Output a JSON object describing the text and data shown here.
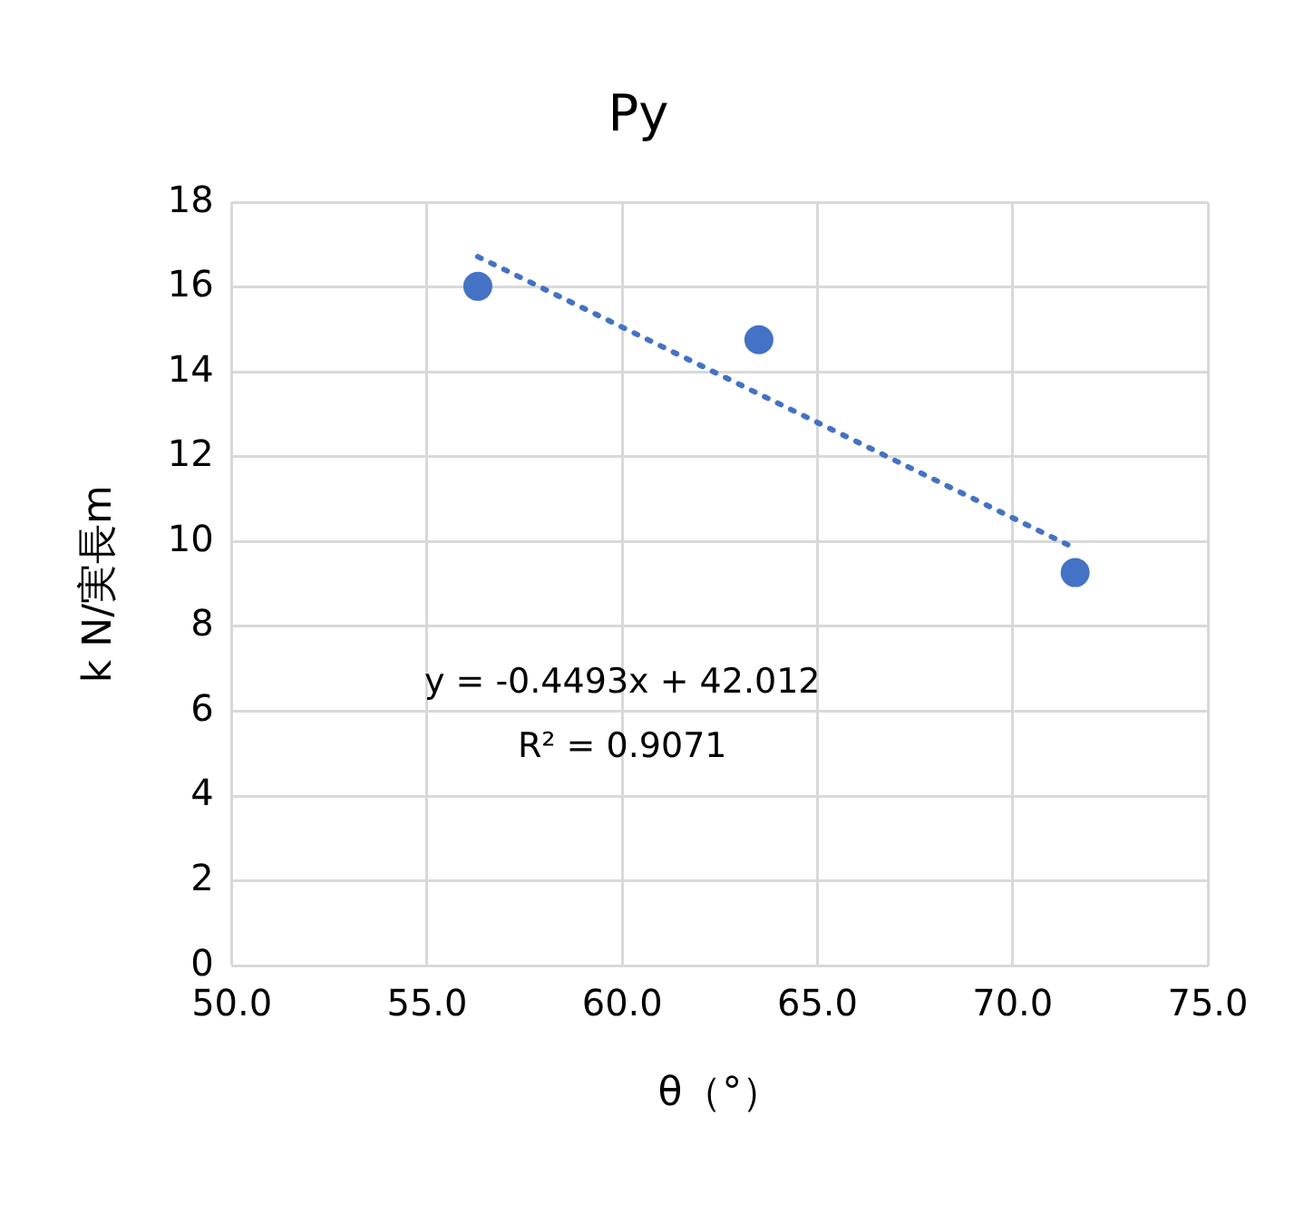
{
  "chart_data": {
    "type": "scatter",
    "title": "Py",
    "xlabel": "θ（°）",
    "ylabel": "k N/実長m",
    "series": [
      {
        "color": "#4472c4",
        "marker": "circle",
        "x": [
          56.3,
          63.5,
          71.6
        ],
        "values": [
          16.02,
          14.76,
          9.27
        ]
      },
      {
        "type": "line",
        "color": "#4472c4",
        "marker": "none",
        "line_style": "dotted",
        "x": [
          56.3,
          71.6
        ],
        "values": [
          16.72,
          9.84
        ]
      }
    ],
    "annotations": [
      "y = -0.4493x + 42.012",
      "R² = 0.9071"
    ],
    "xlim": [
      50,
      75
    ],
    "xticks": [
      {
        "value": 50,
        "label": "50.0"
      },
      {
        "value": 55,
        "label": "55.0"
      },
      {
        "value": 60,
        "label": "60.0"
      },
      {
        "value": 65,
        "label": "65.0"
      },
      {
        "value": 70,
        "label": "70.0"
      },
      {
        "value": 75,
        "label": "75.0"
      }
    ],
    "ylim": [
      0,
      18
    ],
    "yticks": [
      0,
      2,
      4,
      6,
      8,
      10,
      12,
      14,
      16,
      18
    ],
    "grid": true,
    "legend": false
  }
}
